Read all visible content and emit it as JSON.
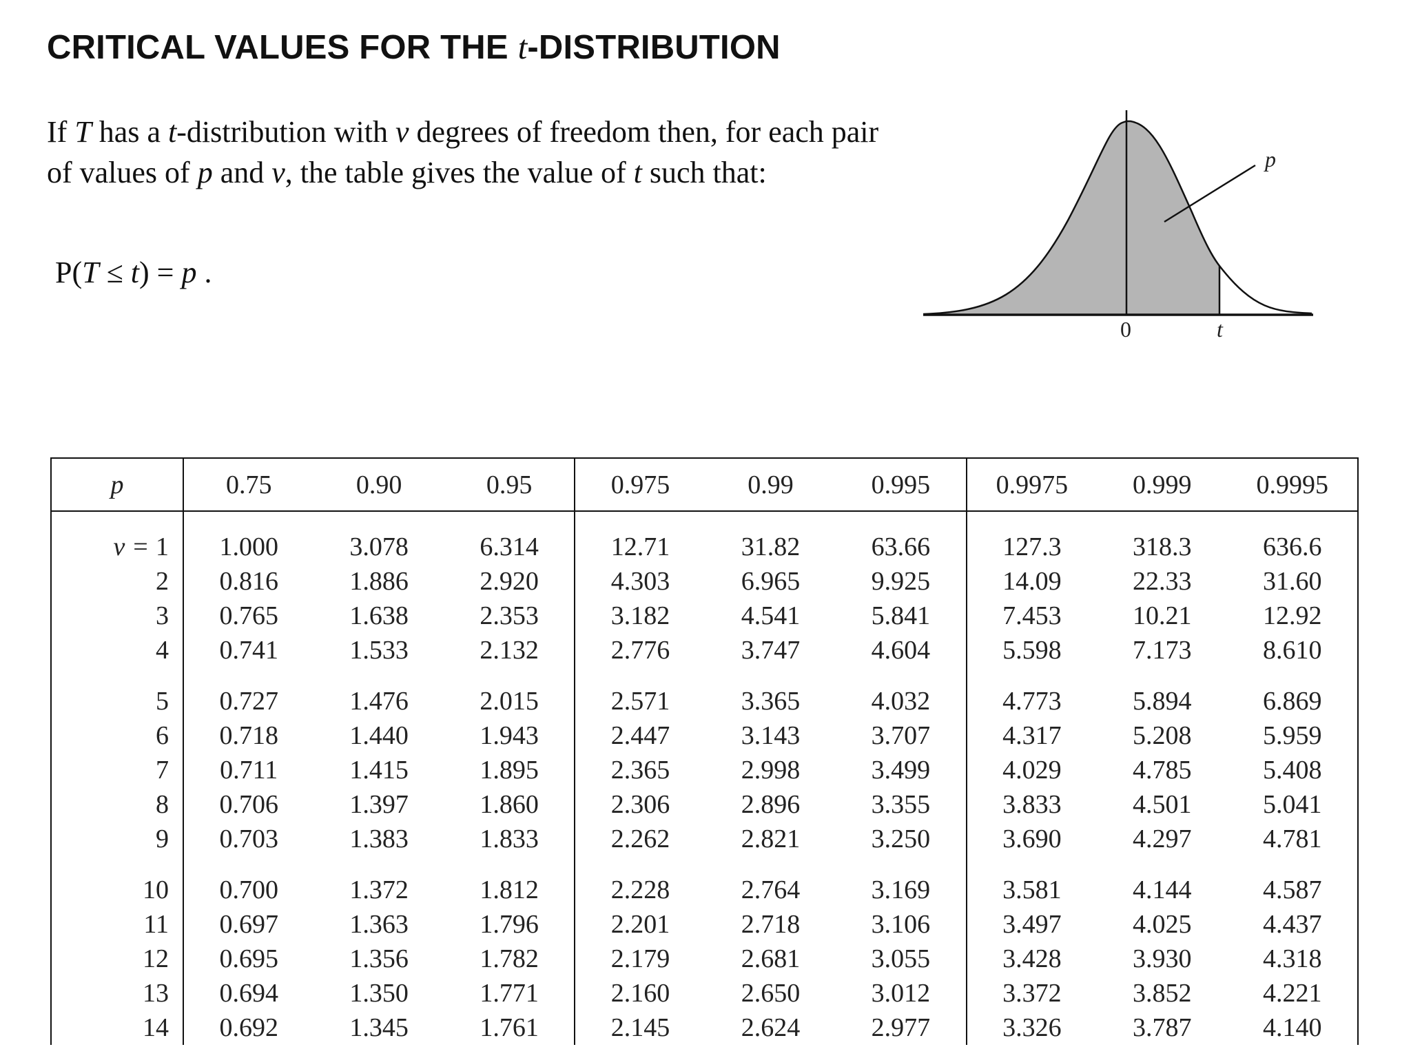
{
  "title": {
    "prefix": "CRITICAL VALUES FOR THE ",
    "var": "t",
    "suffix": "-DISTRIBUTION"
  },
  "intro": {
    "s1": "If ",
    "T": "T",
    "s2": " has a ",
    "t": "t",
    "s3": "-distribution with ",
    "nu": "ν",
    "s4": " degrees of freedom then, for each pair of values of ",
    "p": "p",
    "s5": " and ",
    "nu2": "ν",
    "s6": ", the table gives the value of ",
    "t2": "t",
    "s7": " such that:"
  },
  "formula": {
    "lead": "P(",
    "T": "T",
    "le": " ≤ ",
    "t": "t",
    "close": ") = ",
    "p": "p",
    "end": " ."
  },
  "figure": {
    "label_p": "p",
    "label_zero": "0",
    "label_t": "t"
  },
  "table": {
    "p_label": "p",
    "nu_prefix": "ν = ",
    "columns": [
      "0.75",
      "0.90",
      "0.95",
      "0.975",
      "0.99",
      "0.995",
      "0.9975",
      "0.999",
      "0.9995"
    ],
    "rows": [
      {
        "nu": "1",
        "values": [
          "1.000",
          "3.078",
          "6.314",
          "12.71",
          "31.82",
          "63.66",
          "127.3",
          "318.3",
          "636.6"
        ]
      },
      {
        "nu": "2",
        "values": [
          "0.816",
          "1.886",
          "2.920",
          "4.303",
          "6.965",
          "9.925",
          "14.09",
          "22.33",
          "31.60"
        ]
      },
      {
        "nu": "3",
        "values": [
          "0.765",
          "1.638",
          "2.353",
          "3.182",
          "4.541",
          "5.841",
          "7.453",
          "10.21",
          "12.92"
        ]
      },
      {
        "nu": "4",
        "values": [
          "0.741",
          "1.533",
          "2.132",
          "2.776",
          "3.747",
          "4.604",
          "5.598",
          "7.173",
          "8.610"
        ]
      },
      {
        "nu": "5",
        "values": [
          "0.727",
          "1.476",
          "2.015",
          "2.571",
          "3.365",
          "4.032",
          "4.773",
          "5.894",
          "6.869"
        ]
      },
      {
        "nu": "6",
        "values": [
          "0.718",
          "1.440",
          "1.943",
          "2.447",
          "3.143",
          "3.707",
          "4.317",
          "5.208",
          "5.959"
        ]
      },
      {
        "nu": "7",
        "values": [
          "0.711",
          "1.415",
          "1.895",
          "2.365",
          "2.998",
          "3.499",
          "4.029",
          "4.785",
          "5.408"
        ]
      },
      {
        "nu": "8",
        "values": [
          "0.706",
          "1.397",
          "1.860",
          "2.306",
          "2.896",
          "3.355",
          "3.833",
          "4.501",
          "5.041"
        ]
      },
      {
        "nu": "9",
        "values": [
          "0.703",
          "1.383",
          "1.833",
          "2.262",
          "2.821",
          "3.250",
          "3.690",
          "4.297",
          "4.781"
        ]
      },
      {
        "nu": "10",
        "values": [
          "0.700",
          "1.372",
          "1.812",
          "2.228",
          "2.764",
          "3.169",
          "3.581",
          "4.144",
          "4.587"
        ]
      },
      {
        "nu": "11",
        "values": [
          "0.697",
          "1.363",
          "1.796",
          "2.201",
          "2.718",
          "3.106",
          "3.497",
          "4.025",
          "4.437"
        ]
      },
      {
        "nu": "12",
        "values": [
          "0.695",
          "1.356",
          "1.782",
          "2.179",
          "2.681",
          "3.055",
          "3.428",
          "3.930",
          "4.318"
        ]
      },
      {
        "nu": "13",
        "values": [
          "0.694",
          "1.350",
          "1.771",
          "2.160",
          "2.650",
          "3.012",
          "3.372",
          "3.852",
          "4.221"
        ]
      },
      {
        "nu": "14",
        "values": [
          "0.692",
          "1.345",
          "1.761",
          "2.145",
          "2.624",
          "2.977",
          "3.326",
          "3.787",
          "4.140"
        ]
      }
    ]
  }
}
